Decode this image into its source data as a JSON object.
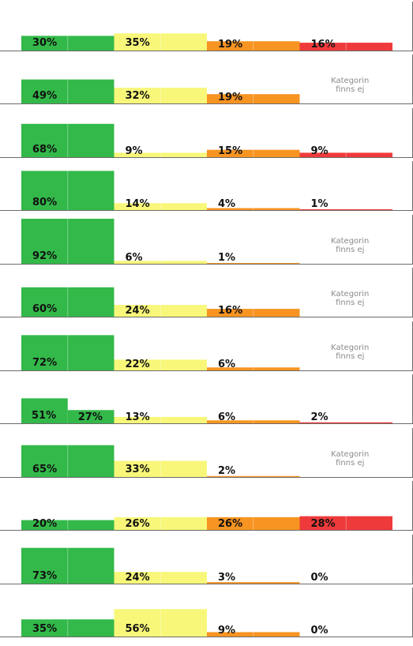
{
  "colors": {
    "green": "#33b949",
    "yellow": "#f8f77a",
    "orange": "#f79422",
    "red": "#ef3a3b",
    "axis": "#6b6b6b",
    "divider": "#ffffff"
  },
  "chart_data": [
    {
      "type": "bar",
      "values": [
        30,
        35,
        19,
        16
      ],
      "labels": [
        "30%",
        "35%",
        "19%",
        "16%"
      ],
      "ylim": [
        0,
        100
      ]
    },
    {
      "type": "bar",
      "values": [
        49,
        32,
        19,
        null
      ],
      "labels": [
        "49%",
        "32%",
        "19%",
        null
      ],
      "missing_text": "Kategorin finns ej",
      "ylim": [
        0,
        100
      ]
    },
    {
      "type": "bar",
      "values": [
        68,
        9,
        15,
        9
      ],
      "labels": [
        "68%",
        "9%",
        "15%",
        "9%"
      ],
      "ylim": [
        0,
        100
      ]
    },
    {
      "type": "bar",
      "values": [
        80,
        14,
        4,
        1
      ],
      "labels": [
        "80%",
        "14%",
        "4%",
        "1%"
      ],
      "ylim": [
        0,
        100
      ]
    },
    {
      "type": "bar",
      "values": [
        92,
        6,
        1,
        null
      ],
      "labels": [
        "92%",
        "6%",
        "1%",
        null
      ],
      "missing_text": "Kategorin finns ej",
      "ylim": [
        0,
        100
      ]
    },
    {
      "type": "bar",
      "values": [
        60,
        24,
        16,
        null
      ],
      "labels": [
        "60%",
        "24%",
        "16%",
        null
      ],
      "missing_text": "Kategorin finns ej",
      "ylim": [
        0,
        100
      ]
    },
    {
      "type": "bar",
      "values": [
        72,
        22,
        6,
        null
      ],
      "labels": [
        "72%",
        "22%",
        "6%",
        null
      ],
      "missing_text": "Kategorin finns ej",
      "ylim": [
        0,
        100
      ]
    },
    {
      "type": "bar",
      "split_first": true,
      "values": [
        51,
        27,
        13,
        6,
        2
      ],
      "labels": [
        "51%",
        "27%",
        "13%",
        "6%",
        "2%"
      ],
      "ylim": [
        0,
        100
      ]
    },
    {
      "type": "bar",
      "values": [
        65,
        33,
        2,
        null
      ],
      "labels": [
        "65%",
        "33%",
        "2%",
        null
      ],
      "missing_text": "Kategorin finns ej",
      "ylim": [
        0,
        100
      ]
    },
    {
      "type": "bar",
      "values": [
        20,
        26,
        26,
        28
      ],
      "labels": [
        "20%",
        "26%",
        "26%",
        "28%"
      ],
      "ylim": [
        0,
        100
      ]
    },
    {
      "type": "bar",
      "values": [
        73,
        24,
        3,
        0
      ],
      "labels": [
        "73%",
        "24%",
        "3%",
        "0%"
      ],
      "ylim": [
        0,
        100
      ]
    },
    {
      "type": "bar",
      "values": [
        35,
        56,
        9,
        0
      ],
      "labels": [
        "35%",
        "56%",
        "9%",
        "0%"
      ],
      "ylim": [
        0,
        100
      ]
    }
  ]
}
